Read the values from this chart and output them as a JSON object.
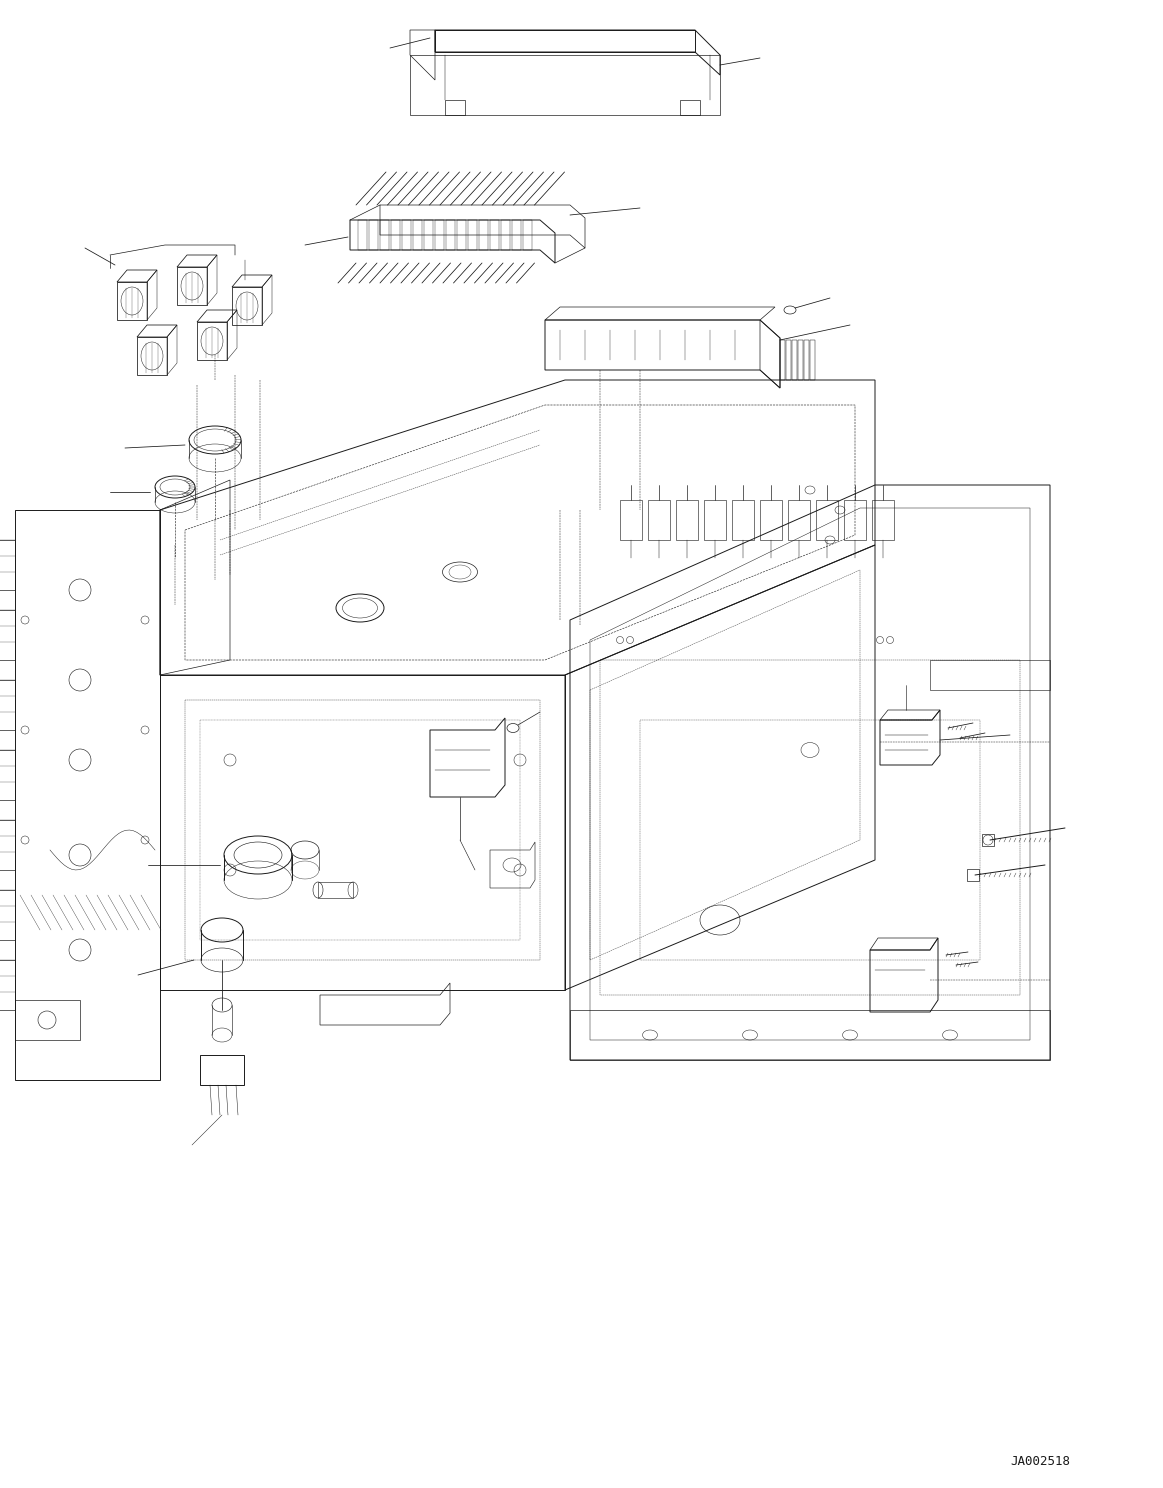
{
  "bg_color": "#ffffff",
  "line_color": "#1a1a1a",
  "diagram_id": "JA002518",
  "figsize": [
    11.63,
    14.88
  ],
  "dpi": 100
}
